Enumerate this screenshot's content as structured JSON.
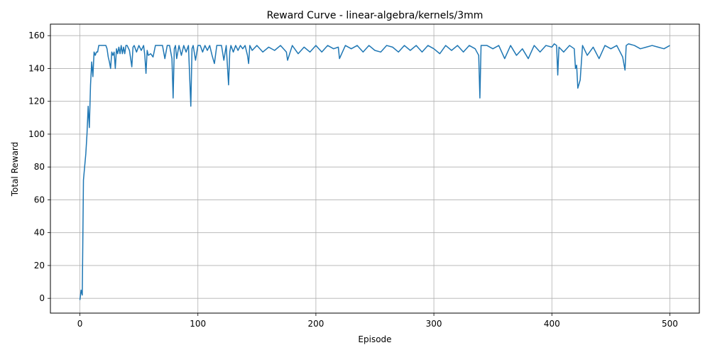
{
  "chart_data": {
    "type": "line",
    "title": "Reward Curve - linear-algebra/kernels/3mm",
    "xlabel": "Episode",
    "ylabel": "Total Reward",
    "xlim": [
      -25,
      525
    ],
    "ylim": [
      -9,
      167
    ],
    "xticks": [
      0,
      100,
      200,
      300,
      400,
      500
    ],
    "yticks": [
      0,
      20,
      40,
      60,
      80,
      100,
      120,
      140,
      160
    ],
    "grid": true,
    "legend": "none",
    "series": [
      {
        "color": "#1f77b4",
        "x": [
          0,
          1,
          2,
          3,
          4,
          5,
          6,
          7,
          8,
          9,
          10,
          11,
          12,
          13,
          14,
          15,
          16,
          17,
          18,
          19,
          20,
          22,
          23,
          24,
          25,
          26,
          27,
          28,
          29,
          30,
          31,
          32,
          33,
          34,
          35,
          36,
          37,
          38,
          39,
          40,
          42,
          44,
          45,
          46,
          48,
          50,
          52,
          54,
          55,
          56,
          57,
          58,
          60,
          62,
          64,
          66,
          68,
          70,
          72,
          74,
          76,
          78,
          79,
          80,
          81,
          82,
          84,
          86,
          88,
          90,
          92,
          94,
          95,
          96,
          98,
          100,
          102,
          104,
          106,
          108,
          110,
          112,
          114,
          116,
          118,
          120,
          122,
          124,
          126,
          127,
          128,
          130,
          132,
          134,
          136,
          138,
          140,
          142,
          143,
          144,
          146,
          150,
          155,
          160,
          165,
          170,
          175,
          176,
          180,
          185,
          190,
          195,
          200,
          205,
          210,
          215,
          219,
          220,
          225,
          230,
          235,
          240,
          245,
          250,
          255,
          260,
          265,
          270,
          275,
          280,
          285,
          290,
          295,
          300,
          305,
          310,
          315,
          320,
          325,
          330,
          335,
          338,
          339,
          340,
          345,
          350,
          355,
          360,
          365,
          370,
          375,
          380,
          385,
          390,
          395,
          400,
          402,
          404,
          405,
          406,
          410,
          415,
          419,
          420,
          421,
          422,
          424,
          426,
          430,
          435,
          440,
          445,
          450,
          455,
          460,
          462,
          463,
          465,
          470,
          475,
          480,
          485,
          490,
          495,
          500
        ],
        "y": [
          -1,
          5,
          2,
          72,
          80,
          88,
          100,
          117,
          104,
          130,
          144,
          135,
          150,
          148,
          150,
          150,
          154,
          154,
          154,
          154,
          154,
          154,
          152,
          147,
          144,
          140,
          150,
          148,
          150,
          140,
          152,
          149,
          153,
          149,
          154,
          149,
          153,
          149,
          154,
          154,
          151,
          141,
          153,
          154,
          150,
          154,
          151,
          154,
          148,
          137,
          151,
          148,
          149,
          147,
          154,
          154,
          154,
          154,
          146,
          154,
          154,
          146,
          122,
          152,
          154,
          146,
          154,
          148,
          154,
          150,
          154,
          117,
          152,
          154,
          145,
          154,
          154,
          150,
          154,
          151,
          154,
          148,
          143,
          154,
          154,
          154,
          145,
          154,
          130,
          150,
          154,
          150,
          154,
          151,
          154,
          152,
          154,
          148,
          143,
          154,
          151,
          154,
          150,
          153,
          151,
          154,
          150,
          145,
          154,
          149,
          153,
          150,
          154,
          150,
          154,
          152,
          153,
          146,
          154,
          152,
          154,
          150,
          154,
          151,
          150,
          154,
          153,
          150,
          154,
          151,
          154,
          150,
          154,
          152,
          149,
          154,
          151,
          154,
          150,
          154,
          152,
          148,
          122,
          154,
          154,
          152,
          154,
          146,
          154,
          148,
          152,
          146,
          154,
          150,
          154,
          153,
          155,
          154,
          136,
          153,
          150,
          154,
          152,
          140,
          142,
          128,
          133,
          154,
          148,
          153,
          146,
          154,
          152,
          154,
          147,
          139,
          154,
          155,
          154,
          152,
          153,
          154,
          153,
          152,
          154
        ]
      }
    ]
  }
}
